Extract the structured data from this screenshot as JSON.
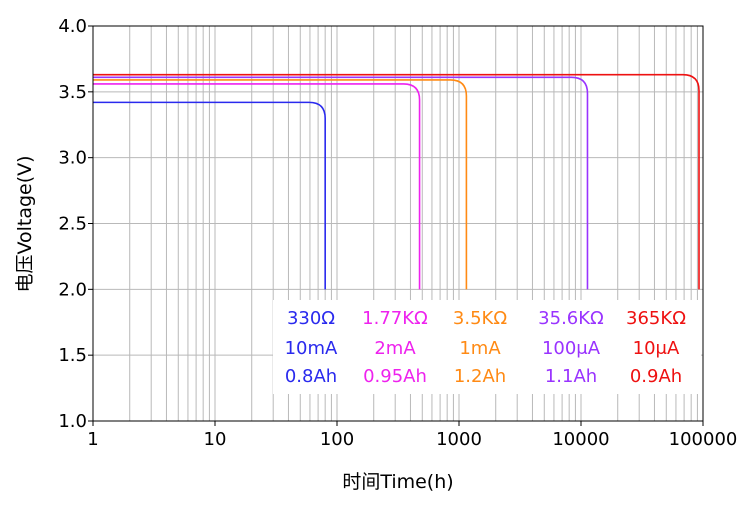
{
  "chart_data": {
    "type": "line",
    "title": "",
    "xlabel": "时间Time(h)",
    "ylabel": "电压Voltage(V)",
    "x_scale": "log",
    "xlim": [
      1,
      100000
    ],
    "ylim": [
      1.0,
      4.0
    ],
    "x_ticks": [
      "1",
      "10",
      "100",
      "1000",
      "10000",
      "100000"
    ],
    "y_ticks": [
      "1.0",
      "1.5",
      "2.0",
      "2.5",
      "3.0",
      "3.5",
      "4.0"
    ],
    "grid": true,
    "series": [
      {
        "color": "#2a2aee",
        "plateau_voltage": 3.42,
        "cutoff_hours": 80,
        "labels": [
          "330Ω",
          "10mA",
          "0.8Ah"
        ]
      },
      {
        "color": "#ee22ee",
        "plateau_voltage": 3.56,
        "cutoff_hours": 475,
        "labels": [
          "1.77KΩ",
          "2mA",
          "0.95Ah"
        ]
      },
      {
        "color": "#ff8a14",
        "plateau_voltage": 3.59,
        "cutoff_hours": 1150,
        "labels": [
          "3.5KΩ",
          "1mA",
          "1.2Ah"
        ]
      },
      {
        "color": "#9933ff",
        "plateau_voltage": 3.61,
        "cutoff_hours": 11300,
        "labels": [
          "35.6KΩ",
          "100μA",
          "1.1Ah"
        ]
      },
      {
        "color": "#ee1111",
        "plateau_voltage": 3.63,
        "cutoff_hours": 95000,
        "labels": [
          "365KΩ",
          "10μA",
          "0.9Ah"
        ]
      }
    ]
  }
}
